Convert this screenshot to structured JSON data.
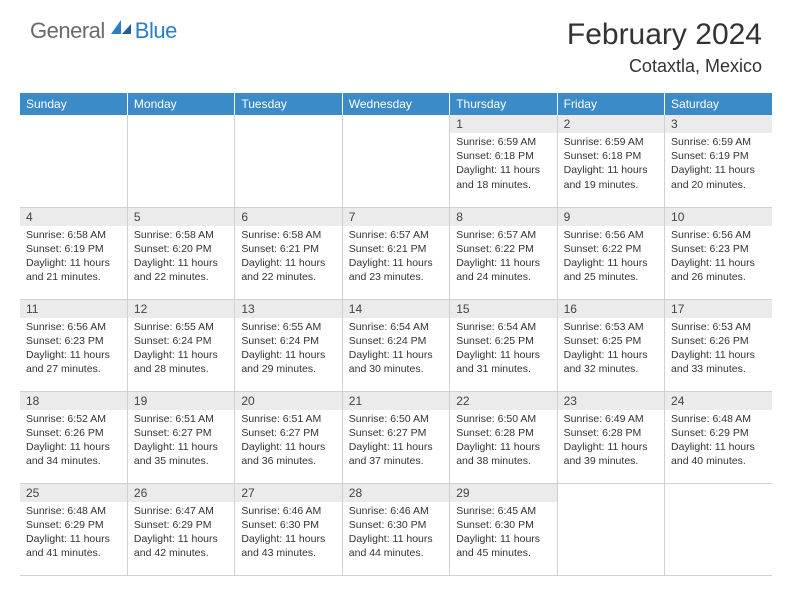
{
  "brand": {
    "general": "General",
    "blue": "Blue"
  },
  "title": "February 2024",
  "location": "Cotaxtla, Mexico",
  "colors": {
    "header_bg": "#3b8bc9",
    "header_text": "#ffffff",
    "daynum_bg": "#ebebeb",
    "border": "#d0d0d0",
    "logo_gray": "#6a6a6a",
    "logo_blue": "#2a7fc4"
  },
  "weekdays": [
    "Sunday",
    "Monday",
    "Tuesday",
    "Wednesday",
    "Thursday",
    "Friday",
    "Saturday"
  ],
  "weeks": [
    [
      null,
      null,
      null,
      null,
      {
        "n": "1",
        "sunrise": "Sunrise: 6:59 AM",
        "sunset": "Sunset: 6:18 PM",
        "daylight": "Daylight: 11 hours and 18 minutes."
      },
      {
        "n": "2",
        "sunrise": "Sunrise: 6:59 AM",
        "sunset": "Sunset: 6:18 PM",
        "daylight": "Daylight: 11 hours and 19 minutes."
      },
      {
        "n": "3",
        "sunrise": "Sunrise: 6:59 AM",
        "sunset": "Sunset: 6:19 PM",
        "daylight": "Daylight: 11 hours and 20 minutes."
      }
    ],
    [
      {
        "n": "4",
        "sunrise": "Sunrise: 6:58 AM",
        "sunset": "Sunset: 6:19 PM",
        "daylight": "Daylight: 11 hours and 21 minutes."
      },
      {
        "n": "5",
        "sunrise": "Sunrise: 6:58 AM",
        "sunset": "Sunset: 6:20 PM",
        "daylight": "Daylight: 11 hours and 22 minutes."
      },
      {
        "n": "6",
        "sunrise": "Sunrise: 6:58 AM",
        "sunset": "Sunset: 6:21 PM",
        "daylight": "Daylight: 11 hours and 22 minutes."
      },
      {
        "n": "7",
        "sunrise": "Sunrise: 6:57 AM",
        "sunset": "Sunset: 6:21 PM",
        "daylight": "Daylight: 11 hours and 23 minutes."
      },
      {
        "n": "8",
        "sunrise": "Sunrise: 6:57 AM",
        "sunset": "Sunset: 6:22 PM",
        "daylight": "Daylight: 11 hours and 24 minutes."
      },
      {
        "n": "9",
        "sunrise": "Sunrise: 6:56 AM",
        "sunset": "Sunset: 6:22 PM",
        "daylight": "Daylight: 11 hours and 25 minutes."
      },
      {
        "n": "10",
        "sunrise": "Sunrise: 6:56 AM",
        "sunset": "Sunset: 6:23 PM",
        "daylight": "Daylight: 11 hours and 26 minutes."
      }
    ],
    [
      {
        "n": "11",
        "sunrise": "Sunrise: 6:56 AM",
        "sunset": "Sunset: 6:23 PM",
        "daylight": "Daylight: 11 hours and 27 minutes."
      },
      {
        "n": "12",
        "sunrise": "Sunrise: 6:55 AM",
        "sunset": "Sunset: 6:24 PM",
        "daylight": "Daylight: 11 hours and 28 minutes."
      },
      {
        "n": "13",
        "sunrise": "Sunrise: 6:55 AM",
        "sunset": "Sunset: 6:24 PM",
        "daylight": "Daylight: 11 hours and 29 minutes."
      },
      {
        "n": "14",
        "sunrise": "Sunrise: 6:54 AM",
        "sunset": "Sunset: 6:24 PM",
        "daylight": "Daylight: 11 hours and 30 minutes."
      },
      {
        "n": "15",
        "sunrise": "Sunrise: 6:54 AM",
        "sunset": "Sunset: 6:25 PM",
        "daylight": "Daylight: 11 hours and 31 minutes."
      },
      {
        "n": "16",
        "sunrise": "Sunrise: 6:53 AM",
        "sunset": "Sunset: 6:25 PM",
        "daylight": "Daylight: 11 hours and 32 minutes."
      },
      {
        "n": "17",
        "sunrise": "Sunrise: 6:53 AM",
        "sunset": "Sunset: 6:26 PM",
        "daylight": "Daylight: 11 hours and 33 minutes."
      }
    ],
    [
      {
        "n": "18",
        "sunrise": "Sunrise: 6:52 AM",
        "sunset": "Sunset: 6:26 PM",
        "daylight": "Daylight: 11 hours and 34 minutes."
      },
      {
        "n": "19",
        "sunrise": "Sunrise: 6:51 AM",
        "sunset": "Sunset: 6:27 PM",
        "daylight": "Daylight: 11 hours and 35 minutes."
      },
      {
        "n": "20",
        "sunrise": "Sunrise: 6:51 AM",
        "sunset": "Sunset: 6:27 PM",
        "daylight": "Daylight: 11 hours and 36 minutes."
      },
      {
        "n": "21",
        "sunrise": "Sunrise: 6:50 AM",
        "sunset": "Sunset: 6:27 PM",
        "daylight": "Daylight: 11 hours and 37 minutes."
      },
      {
        "n": "22",
        "sunrise": "Sunrise: 6:50 AM",
        "sunset": "Sunset: 6:28 PM",
        "daylight": "Daylight: 11 hours and 38 minutes."
      },
      {
        "n": "23",
        "sunrise": "Sunrise: 6:49 AM",
        "sunset": "Sunset: 6:28 PM",
        "daylight": "Daylight: 11 hours and 39 minutes."
      },
      {
        "n": "24",
        "sunrise": "Sunrise: 6:48 AM",
        "sunset": "Sunset: 6:29 PM",
        "daylight": "Daylight: 11 hours and 40 minutes."
      }
    ],
    [
      {
        "n": "25",
        "sunrise": "Sunrise: 6:48 AM",
        "sunset": "Sunset: 6:29 PM",
        "daylight": "Daylight: 11 hours and 41 minutes."
      },
      {
        "n": "26",
        "sunrise": "Sunrise: 6:47 AM",
        "sunset": "Sunset: 6:29 PM",
        "daylight": "Daylight: 11 hours and 42 minutes."
      },
      {
        "n": "27",
        "sunrise": "Sunrise: 6:46 AM",
        "sunset": "Sunset: 6:30 PM",
        "daylight": "Daylight: 11 hours and 43 minutes."
      },
      {
        "n": "28",
        "sunrise": "Sunrise: 6:46 AM",
        "sunset": "Sunset: 6:30 PM",
        "daylight": "Daylight: 11 hours and 44 minutes."
      },
      {
        "n": "29",
        "sunrise": "Sunrise: 6:45 AM",
        "sunset": "Sunset: 6:30 PM",
        "daylight": "Daylight: 11 hours and 45 minutes."
      },
      null,
      null
    ]
  ]
}
